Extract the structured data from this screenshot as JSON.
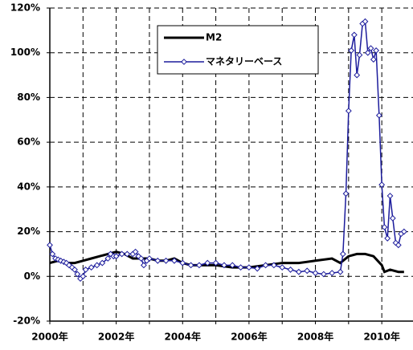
{
  "chart_data": {
    "type": "line",
    "xlim": [
      2000,
      2010.94
    ],
    "xticks": [
      {
        "value": 2000,
        "label": "2000年"
      },
      {
        "value": 2002,
        "label": "2002年"
      },
      {
        "value": 2004,
        "label": "2004年"
      },
      {
        "value": 2006,
        "label": "2006年"
      },
      {
        "value": 2008,
        "label": "2008年"
      },
      {
        "value": 2010,
        "label": "2010年"
      }
    ],
    "minor_xticks": [
      2001,
      2003,
      2005,
      2007,
      2009
    ],
    "ylim": [
      -20,
      120
    ],
    "yticks": [
      {
        "value": -20,
        "label": "-20%"
      },
      {
        "value": 0,
        "label": "0%"
      },
      {
        "value": 20,
        "label": "20%"
      },
      {
        "value": 40,
        "label": "40%"
      },
      {
        "value": 60,
        "label": "60%"
      },
      {
        "value": 80,
        "label": "80%"
      },
      {
        "value": 100,
        "label": "100%"
      },
      {
        "value": 120,
        "label": "120%"
      }
    ],
    "grid": true,
    "legend": "top-center",
    "series": [
      {
        "name": "M2",
        "color": "#000000",
        "marker": "none",
        "x": [
          2000.0,
          2000.25,
          2000.5,
          2000.75,
          2001.0,
          2001.25,
          2001.5,
          2001.75,
          2002.0,
          2002.25,
          2002.5,
          2002.75,
          2003.0,
          2003.25,
          2003.5,
          2003.75,
          2004.0,
          2004.25,
          2004.5,
          2004.75,
          2005.0,
          2005.5,
          2006.0,
          2006.5,
          2007.0,
          2007.5,
          2008.0,
          2008.5,
          2008.75,
          2009.0,
          2009.25,
          2009.5,
          2009.75,
          2010.0,
          2010.08,
          2010.25,
          2010.5,
          2010.67
        ],
        "values": [
          6,
          7,
          6,
          6,
          7,
          8,
          9,
          10,
          11,
          10,
          8,
          8,
          8,
          7,
          7,
          8,
          6,
          5,
          5,
          5,
          5,
          4,
          4,
          5,
          6,
          6,
          7,
          8,
          6,
          9,
          10,
          10,
          9,
          5,
          2,
          3,
          2,
          2
        ]
      },
      {
        "name": "マネタリーベース",
        "color": "#1c1c9c",
        "marker": "diamond",
        "x": [
          2000.0,
          2000.08,
          2000.17,
          2000.25,
          2000.33,
          2000.42,
          2000.5,
          2000.58,
          2000.67,
          2000.75,
          2000.83,
          2000.92,
          2001.0,
          2001.08,
          2001.25,
          2001.42,
          2001.58,
          2001.75,
          2001.83,
          2001.92,
          2002.0,
          2002.17,
          2002.33,
          2002.5,
          2002.58,
          2002.67,
          2002.75,
          2002.83,
          2002.92,
          2003.0,
          2003.25,
          2003.5,
          2003.75,
          2004.0,
          2004.25,
          2004.5,
          2004.75,
          2005.0,
          2005.25,
          2005.5,
          2005.75,
          2006.0,
          2006.25,
          2006.5,
          2006.75,
          2007.0,
          2007.25,
          2007.5,
          2007.75,
          2008.0,
          2008.25,
          2008.5,
          2008.75,
          2008.83,
          2008.92,
          2009.0,
          2009.08,
          2009.17,
          2009.25,
          2009.33,
          2009.42,
          2009.5,
          2009.58,
          2009.67,
          2009.75,
          2009.83,
          2009.92,
          2010.0,
          2010.08,
          2010.17,
          2010.25,
          2010.33,
          2010.42,
          2010.5,
          2010.58,
          2010.67
        ],
        "values": [
          14,
          10,
          8,
          7.5,
          7,
          6.5,
          6,
          5,
          4,
          3,
          1,
          -1,
          0,
          3,
          4,
          5,
          6,
          8,
          10,
          9,
          9,
          10,
          10,
          10,
          11,
          9,
          8,
          5,
          7,
          8,
          7,
          7,
          7,
          6,
          5,
          5,
          6,
          6,
          5,
          5,
          4,
          4,
          3.5,
          5,
          5,
          4,
          3,
          2,
          2.5,
          1.5,
          1,
          1.5,
          2,
          10,
          37,
          74,
          101,
          108,
          90,
          99,
          113,
          114,
          100,
          102,
          97,
          101,
          72,
          41,
          22,
          17,
          36,
          26,
          15,
          14,
          19,
          20
        ]
      }
    ]
  }
}
